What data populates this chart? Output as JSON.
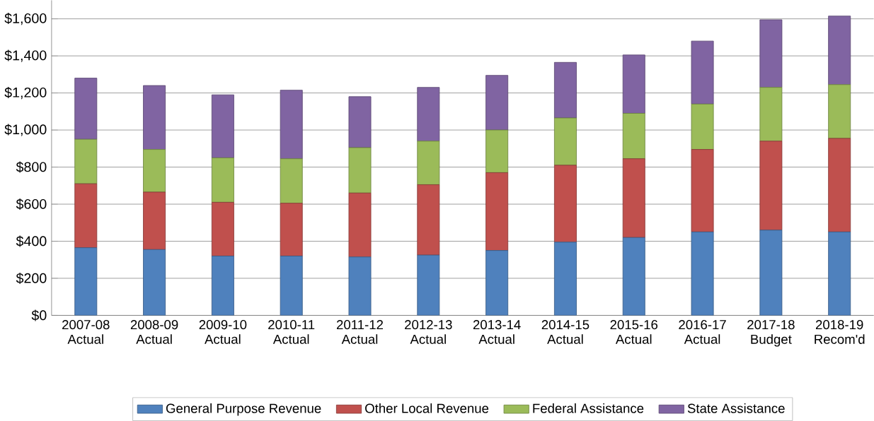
{
  "chart_data": {
    "type": "bar",
    "stacked": true,
    "categories": [
      "2007-08 Actual",
      "2008-09 Actual",
      "2009-10 Actual",
      "2010-11 Actual",
      "2011-12 Actual",
      "2012-13 Actual",
      "2013-14 Actual",
      "2014-15 Actual",
      "2015-16 Actual",
      "2016-17 Actual",
      "2017-18 Budget",
      "2018-19 Recom'd"
    ],
    "series": [
      {
        "name": "General Purpose Revenue",
        "color": "#4f81bd",
        "values": [
          365,
          355,
          320,
          320,
          315,
          325,
          350,
          395,
          420,
          450,
          460,
          450
        ]
      },
      {
        "name": "Other Local Revenue",
        "color": "#c0504d",
        "values": [
          345,
          310,
          290,
          285,
          345,
          380,
          420,
          415,
          425,
          445,
          480,
          505
        ]
      },
      {
        "name": "Federal Assistance",
        "color": "#9bbb59",
        "values": [
          240,
          230,
          240,
          240,
          245,
          235,
          230,
          255,
          245,
          245,
          290,
          290
        ]
      },
      {
        "name": "State Assistance",
        "color": "#8064a2",
        "values": [
          330,
          345,
          340,
          370,
          275,
          290,
          295,
          300,
          315,
          340,
          365,
          370
        ]
      }
    ],
    "ylim": [
      0,
      1700
    ],
    "yticks": [
      {
        "value": 0,
        "label": "$0"
      },
      {
        "value": 200,
        "label": "$200"
      },
      {
        "value": 400,
        "label": "$400"
      },
      {
        "value": 600,
        "label": "$600"
      },
      {
        "value": 800,
        "label": "$800"
      },
      {
        "value": 1000,
        "label": "$1,000"
      },
      {
        "value": 1200,
        "label": "$1,200"
      },
      {
        "value": 1400,
        "label": "$1,400"
      },
      {
        "value": 1600,
        "label": "$1,600"
      }
    ],
    "grid": "y",
    "legend": "bottom"
  }
}
